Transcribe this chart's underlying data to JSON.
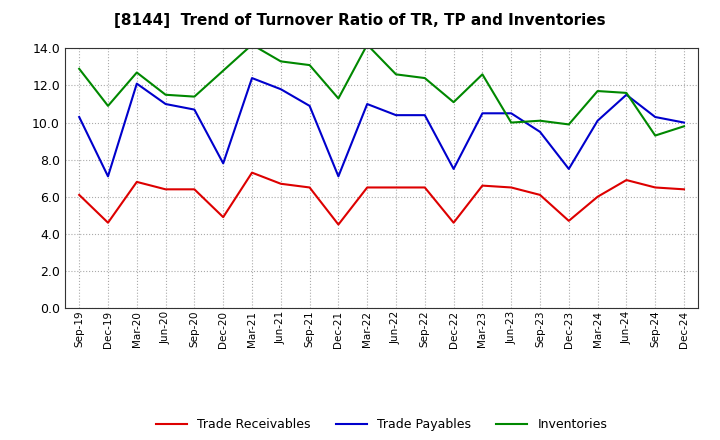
{
  "title": "[8144]  Trend of Turnover Ratio of TR, TP and Inventories",
  "xlabels": [
    "Sep-19",
    "Dec-19",
    "Mar-20",
    "Jun-20",
    "Sep-20",
    "Dec-20",
    "Mar-21",
    "Jun-21",
    "Sep-21",
    "Dec-21",
    "Mar-22",
    "Jun-22",
    "Sep-22",
    "Dec-22",
    "Mar-23",
    "Jun-23",
    "Sep-23",
    "Dec-23",
    "Mar-24",
    "Jun-24",
    "Sep-24",
    "Dec-24"
  ],
  "trade_receivables": [
    6.1,
    4.6,
    6.8,
    6.4,
    6.4,
    4.9,
    7.3,
    6.7,
    6.5,
    4.5,
    6.5,
    6.5,
    6.5,
    4.6,
    6.6,
    6.5,
    6.1,
    4.7,
    6.0,
    6.9,
    6.5,
    6.4
  ],
  "trade_payables": [
    10.3,
    7.1,
    12.1,
    11.0,
    10.7,
    7.8,
    12.4,
    11.8,
    10.9,
    7.1,
    11.0,
    10.4,
    10.4,
    7.5,
    10.5,
    10.5,
    9.5,
    7.5,
    10.1,
    11.5,
    10.3,
    10.0
  ],
  "inventories": [
    12.9,
    10.9,
    12.7,
    11.5,
    11.4,
    12.8,
    14.2,
    13.3,
    13.1,
    11.3,
    14.2,
    12.6,
    12.4,
    11.1,
    12.6,
    10.0,
    10.1,
    9.9,
    11.7,
    11.6,
    9.3,
    9.8
  ],
  "color_tr": "#dd0000",
  "color_tp": "#0000cc",
  "color_inv": "#008800",
  "ylim_min": 0.0,
  "ylim_max": 14.0,
  "yticks": [
    0.0,
    2.0,
    4.0,
    6.0,
    8.0,
    10.0,
    12.0,
    14.0
  ],
  "legend_tr": "Trade Receivables",
  "legend_tp": "Trade Payables",
  "legend_inv": "Inventories",
  "bg_color": "#ffffff",
  "grid_color": "#aaaaaa"
}
